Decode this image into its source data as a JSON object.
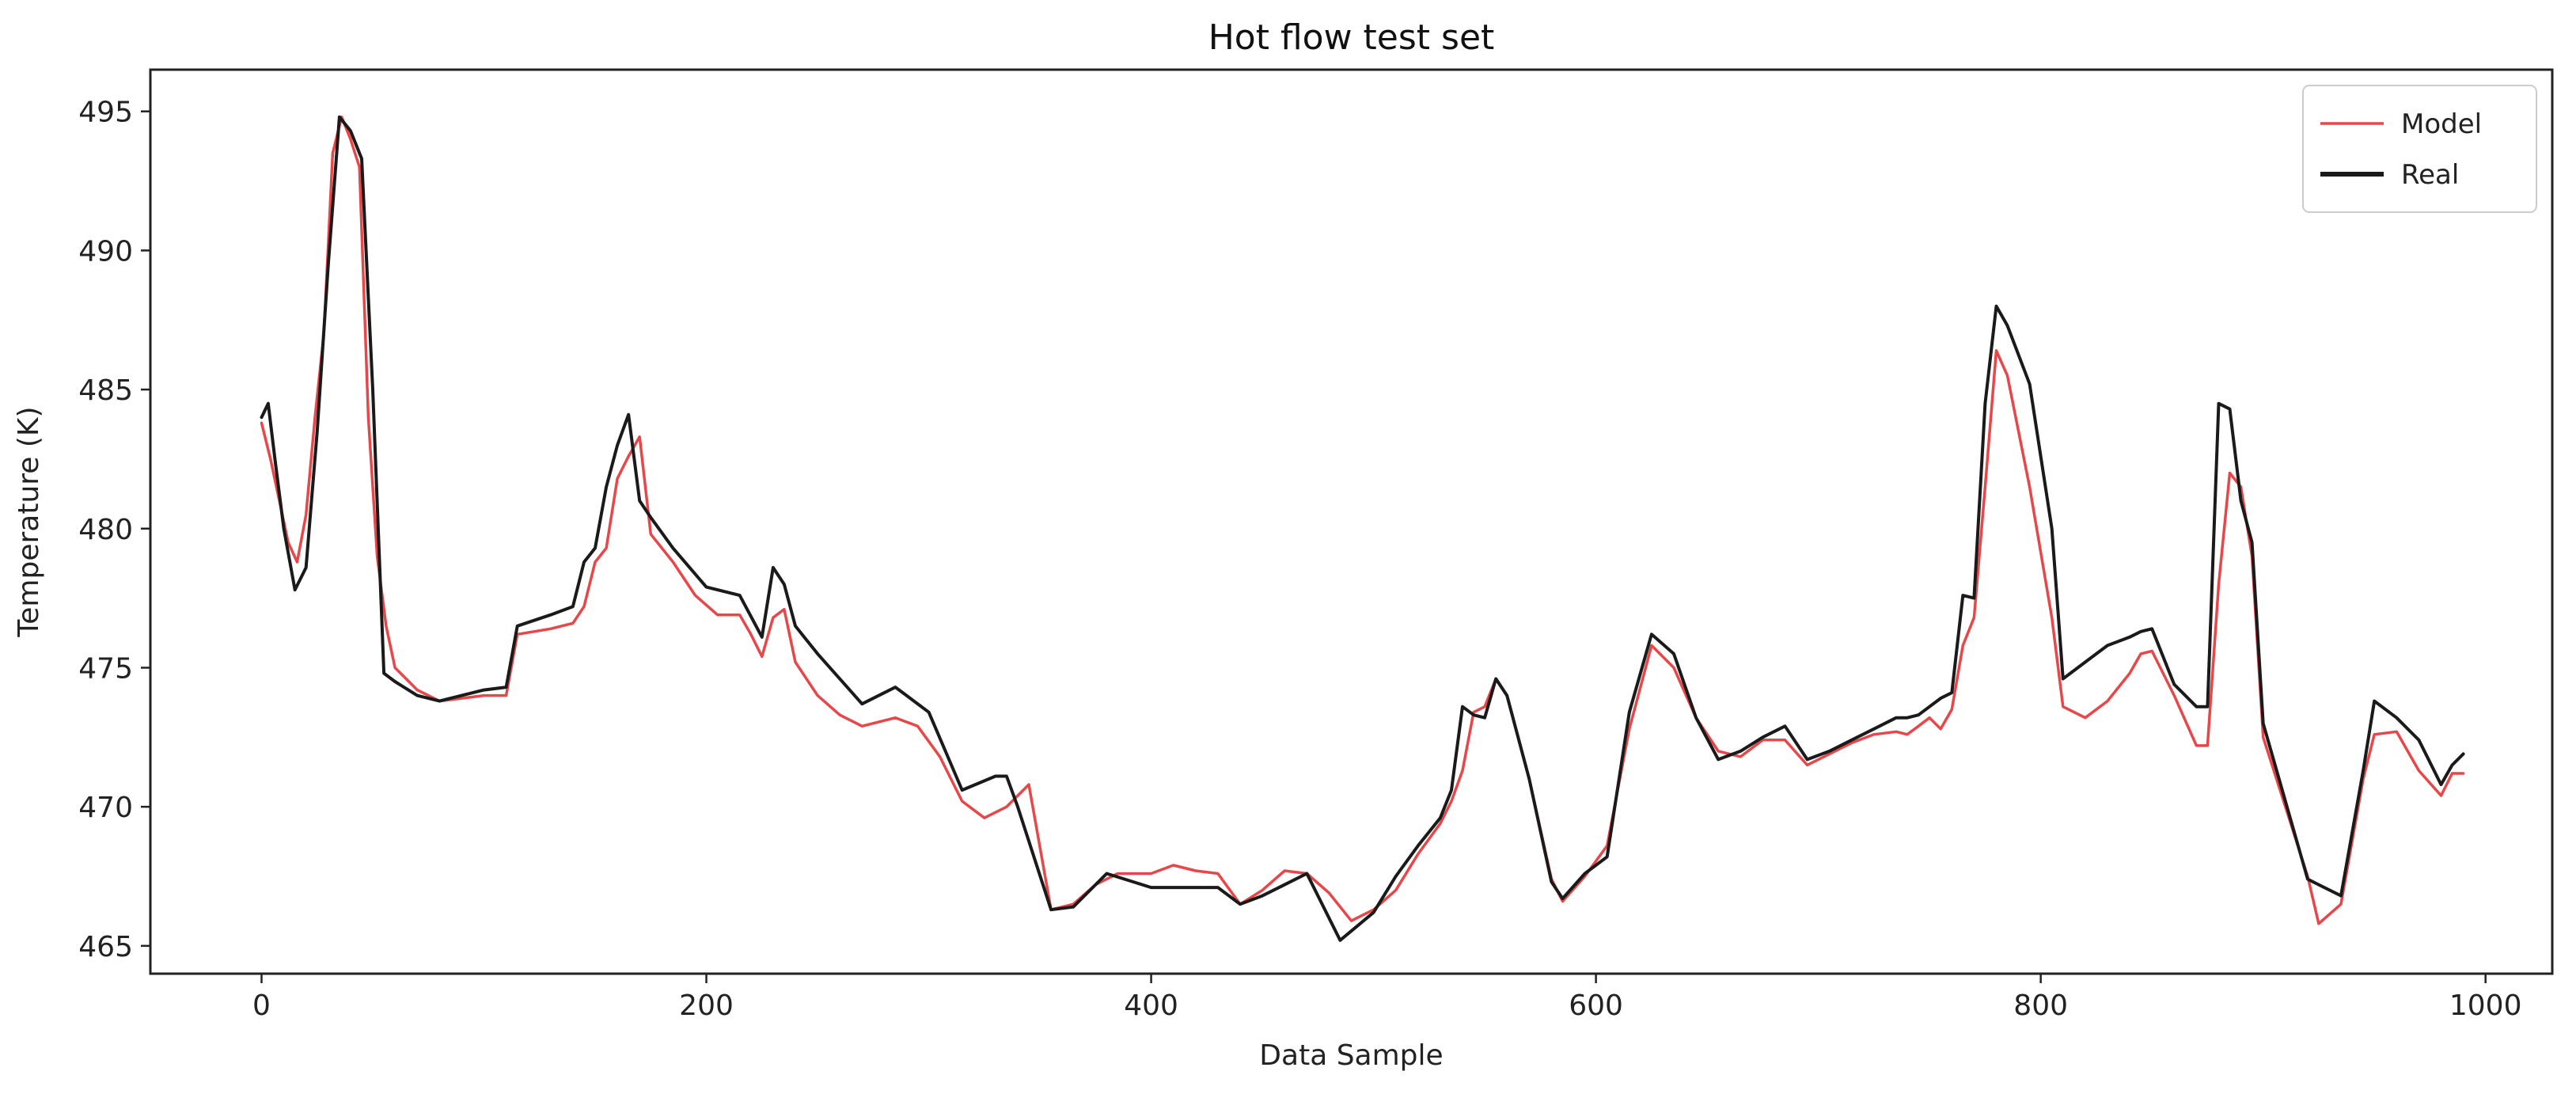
{
  "chart_data": {
    "type": "line",
    "title": "Hot flow test set",
    "xlabel": "Data Sample",
    "ylabel": "Temperature (K)",
    "xlim": [
      -50,
      1030
    ],
    "ylim": [
      464,
      496.5
    ],
    "xticks": [
      0,
      200,
      400,
      600,
      800,
      1000
    ],
    "yticks": [
      465,
      470,
      475,
      480,
      485,
      490,
      495
    ],
    "grid": false,
    "legend_position": "top-right",
    "series": [
      {
        "name": "Model",
        "color": "#e8474a",
        "x": [
          0,
          4,
          8,
          12,
          16,
          20,
          24,
          28,
          32,
          36,
          40,
          44,
          48,
          52,
          56,
          60,
          70,
          80,
          90,
          100,
          110,
          115,
          130,
          140,
          145,
          150,
          155,
          160,
          165,
          170,
          175,
          185,
          195,
          205,
          215,
          220,
          225,
          230,
          235,
          240,
          250,
          260,
          270,
          285,
          295,
          305,
          315,
          325,
          335,
          345,
          355,
          365,
          375,
          385,
          400,
          410,
          420,
          430,
          440,
          450,
          460,
          470,
          480,
          490,
          500,
          510,
          520,
          530,
          535,
          540,
          545,
          550,
          555,
          560,
          570,
          580,
          585,
          595,
          605,
          615,
          625,
          635,
          645,
          655,
          665,
          675,
          685,
          695,
          705,
          715,
          725,
          735,
          740,
          745,
          750,
          755,
          760,
          765,
          770,
          775,
          780,
          785,
          795,
          805,
          810,
          820,
          830,
          840,
          845,
          850,
          860,
          870,
          875,
          880,
          885,
          890,
          895,
          900,
          910,
          920,
          925,
          935,
          945,
          950,
          960,
          970,
          980,
          985,
          990
        ],
        "values": [
          483.8,
          482.5,
          481.0,
          479.5,
          478.8,
          480.5,
          484.0,
          487.0,
          493.5,
          494.8,
          494.0,
          493.0,
          484.0,
          479.0,
          476.5,
          475.0,
          474.2,
          473.8,
          473.9,
          474.0,
          474.0,
          476.2,
          476.4,
          476.6,
          477.2,
          478.8,
          479.3,
          481.8,
          482.6,
          483.3,
          479.8,
          478.8,
          477.6,
          476.9,
          476.9,
          476.2,
          475.4,
          476.8,
          477.1,
          475.2,
          474.0,
          473.3,
          472.9,
          473.2,
          472.9,
          471.8,
          470.2,
          469.6,
          470.0,
          470.8,
          466.3,
          466.5,
          467.2,
          467.6,
          467.6,
          467.9,
          467.7,
          467.6,
          466.5,
          467.0,
          467.7,
          467.6,
          466.9,
          465.9,
          466.3,
          467.0,
          468.3,
          469.4,
          470.2,
          471.3,
          473.4,
          473.6,
          474.6,
          474.0,
          471.0,
          467.4,
          466.6,
          467.5,
          468.6,
          472.8,
          475.8,
          475.0,
          473.2,
          472.0,
          471.8,
          472.4,
          472.4,
          471.5,
          471.9,
          472.3,
          472.6,
          472.7,
          472.6,
          472.9,
          473.2,
          472.8,
          473.5,
          475.8,
          476.8,
          481.5,
          486.4,
          485.5,
          481.5,
          476.8,
          473.6,
          473.2,
          473.8,
          474.8,
          475.5,
          475.6,
          474.0,
          472.2,
          472.2,
          478.0,
          482.0,
          481.5,
          479.0,
          472.5,
          470.0,
          467.5,
          465.8,
          466.5,
          471.0,
          472.6,
          472.7,
          471.3,
          470.4,
          471.2,
          471.2
        ]
      },
      {
        "name": "Real",
        "color": "#1a1a1a",
        "x": [
          0,
          3,
          6,
          10,
          15,
          20,
          25,
          30,
          35,
          40,
          45,
          50,
          55,
          60,
          70,
          80,
          90,
          100,
          110,
          115,
          130,
          140,
          145,
          150,
          155,
          160,
          165,
          170,
          175,
          185,
          200,
          215,
          225,
          230,
          235,
          240,
          250,
          270,
          285,
          300,
          315,
          330,
          335,
          340,
          355,
          365,
          380,
          400,
          430,
          440,
          450,
          460,
          470,
          485,
          500,
          510,
          520,
          530,
          535,
          540,
          545,
          550,
          555,
          560,
          570,
          580,
          585,
          595,
          605,
          615,
          625,
          635,
          645,
          655,
          665,
          675,
          685,
          695,
          705,
          715,
          725,
          735,
          740,
          745,
          750,
          755,
          760,
          765,
          770,
          775,
          780,
          785,
          795,
          805,
          810,
          820,
          830,
          840,
          845,
          850,
          860,
          870,
          875,
          880,
          885,
          890,
          895,
          900,
          910,
          920,
          925,
          935,
          945,
          950,
          960,
          970,
          980,
          985,
          990
        ],
        "values": [
          484.0,
          484.5,
          482.5,
          480.0,
          477.8,
          478.6,
          483.5,
          489.5,
          494.8,
          494.3,
          493.3,
          485.0,
          474.8,
          474.5,
          474.0,
          473.8,
          474.0,
          474.2,
          474.3,
          476.5,
          476.9,
          477.2,
          478.8,
          479.3,
          481.5,
          483.0,
          484.1,
          481.0,
          480.4,
          479.3,
          477.9,
          477.6,
          476.1,
          478.6,
          478.0,
          476.5,
          475.5,
          473.7,
          474.3,
          473.4,
          470.6,
          471.1,
          471.1,
          470.0,
          466.3,
          466.4,
          467.6,
          467.1,
          467.1,
          466.5,
          466.8,
          467.2,
          467.6,
          465.2,
          466.2,
          467.5,
          468.6,
          469.6,
          470.6,
          473.6,
          473.3,
          473.2,
          474.6,
          474.0,
          471.0,
          467.3,
          466.7,
          467.6,
          468.2,
          473.4,
          476.2,
          475.5,
          473.2,
          471.7,
          472.0,
          472.5,
          472.9,
          471.7,
          472.0,
          472.4,
          472.8,
          473.2,
          473.2,
          473.3,
          473.6,
          473.9,
          474.1,
          477.6,
          477.5,
          484.5,
          488.0,
          487.3,
          485.2,
          480.0,
          474.6,
          475.2,
          475.8,
          476.1,
          476.3,
          476.4,
          474.4,
          473.6,
          473.6,
          484.5,
          484.3,
          481.0,
          479.5,
          473.0,
          470.2,
          467.4,
          467.2,
          466.8,
          471.3,
          473.8,
          473.2,
          472.4,
          470.8,
          471.5,
          471.9
        ]
      }
    ]
  }
}
